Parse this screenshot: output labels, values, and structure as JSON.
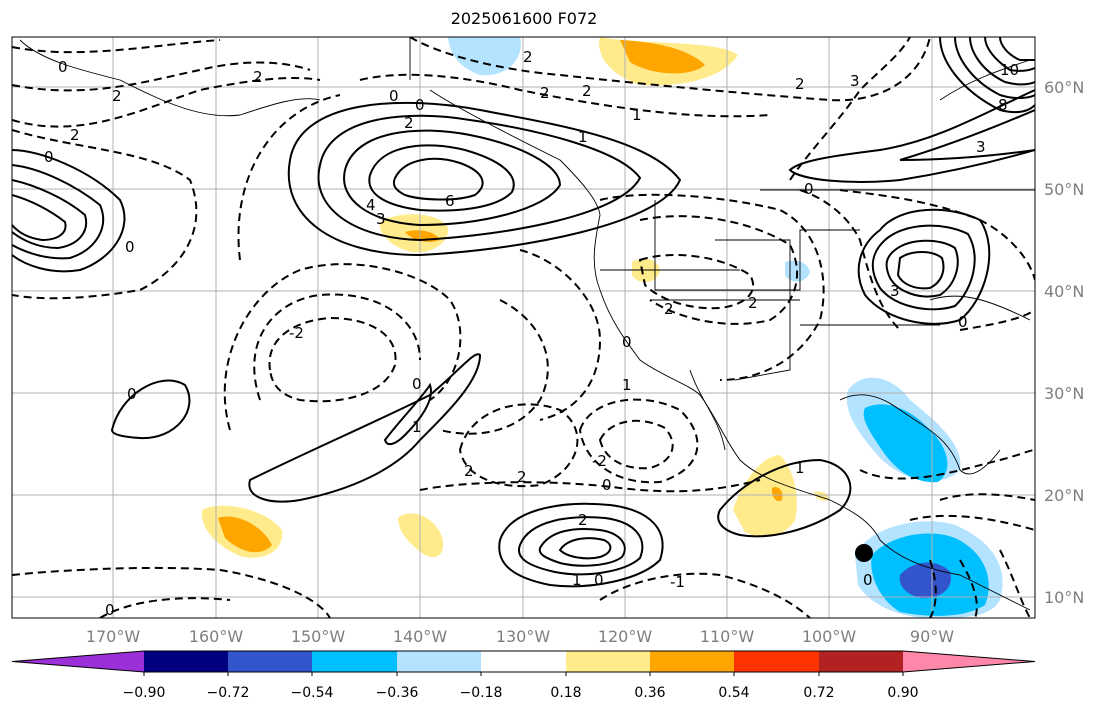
{
  "title": "2025061600 F072",
  "map": {
    "lat_labels": [
      "60°N",
      "50°N",
      "40°N",
      "30°N",
      "20°N",
      "10°N"
    ],
    "lon_labels": [
      "170°W",
      "160°W",
      "150°W",
      "140°W",
      "130°W",
      "120°W",
      "110°W",
      "100°W",
      "90°W"
    ],
    "contour_labels": [
      "0",
      "2",
      "2",
      "0",
      "2",
      "1",
      "6",
      "4",
      "3",
      "2",
      "0",
      "1",
      "0",
      "2",
      "2",
      "-2",
      "0",
      "0",
      "1",
      "0",
      "2",
      "2",
      "2",
      "0",
      "1",
      "2",
      "-2",
      "2",
      "0",
      "1",
      "0",
      "-1",
      "0",
      "1",
      "3",
      "8",
      "10",
      "3",
      "0",
      "2",
      "3",
      "2",
      "0",
      "0"
    ],
    "marker": "black-dot"
  },
  "colorbar": {
    "tick_labels": [
      "−0.90",
      "−0.72",
      "−0.54",
      "−0.36",
      "−0.18",
      "0.18",
      "0.36",
      "0.54",
      "0.72",
      "0.90"
    ],
    "colors": [
      "#9b30d9",
      "#000080",
      "#3355cc",
      "#00bfff",
      "#b3e3ff",
      "#ffffff",
      "#ffeb8c",
      "#ffa500",
      "#ff3300",
      "#b22222",
      "#ff88aa"
    ]
  }
}
